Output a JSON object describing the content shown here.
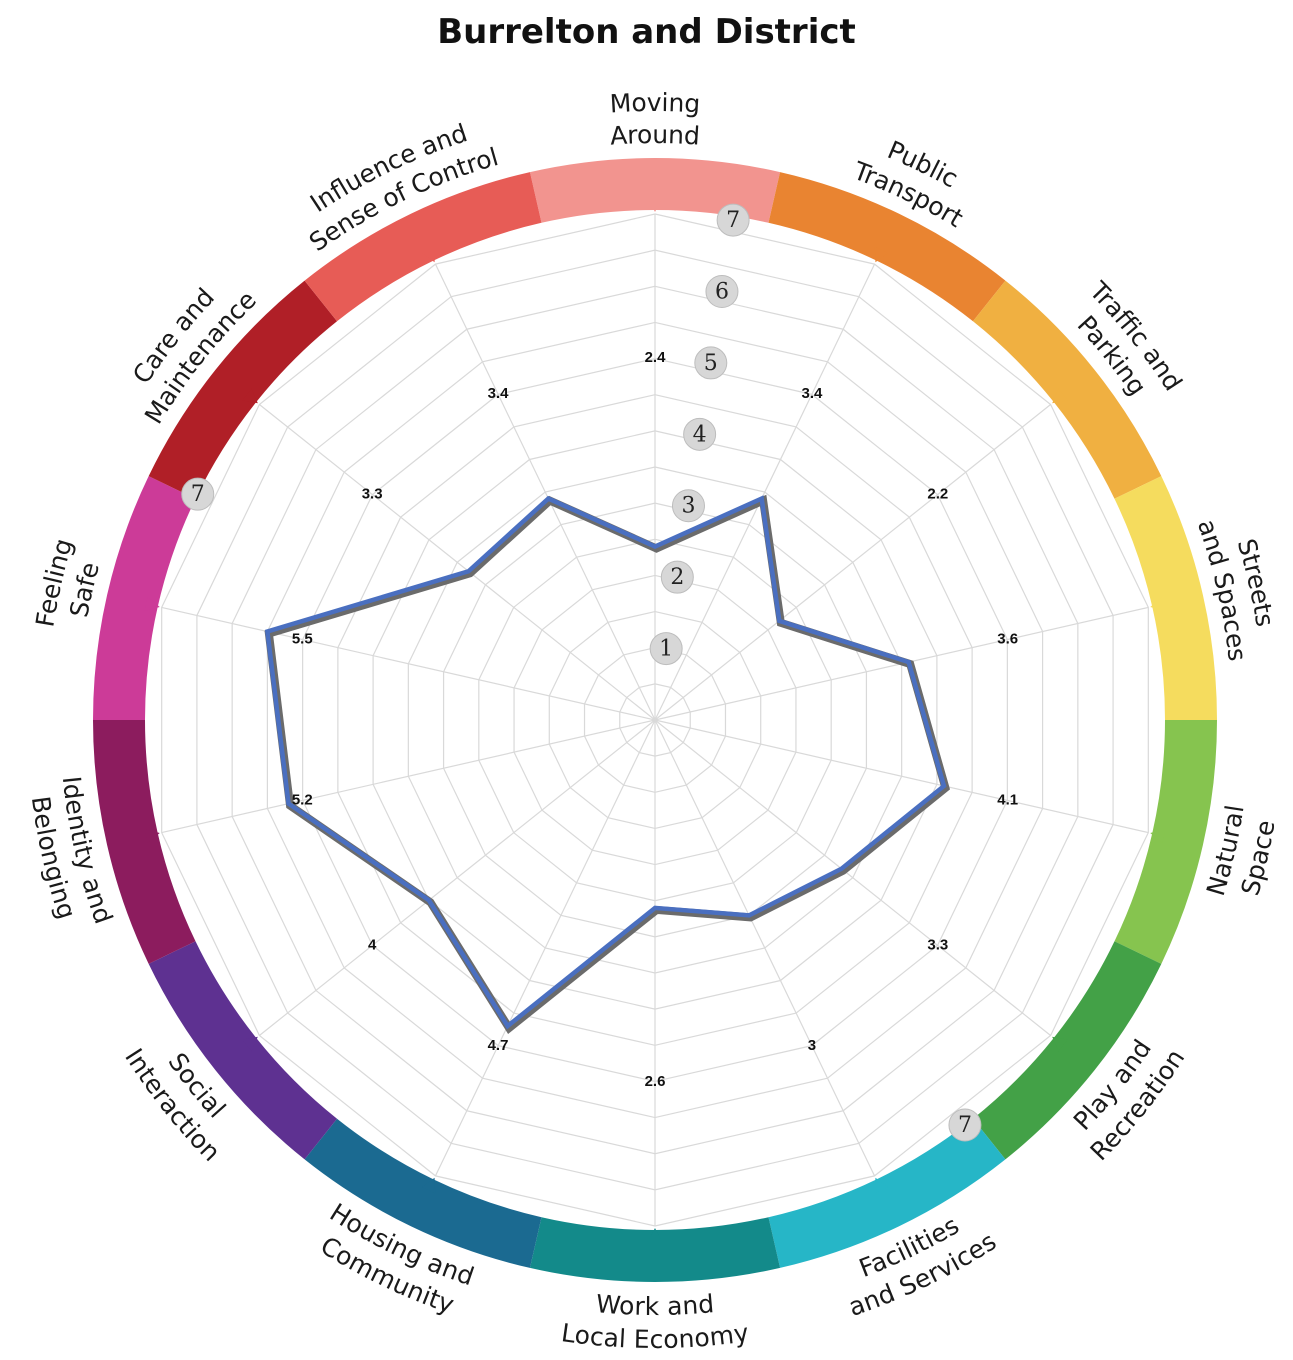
{
  "chart_data": {
    "type": "radar",
    "title": "Burrelton and District",
    "scale_max": 7,
    "scale_labels": [
      "1",
      "2",
      "3",
      "4",
      "5",
      "6",
      "7"
    ],
    "categories": [
      "Moving Around",
      "Public Transport",
      "Traffic and Parking",
      "Streets and Spaces",
      "Natural Space",
      "Play and Recreation",
      "Facilities and Services",
      "Work and Local Economy",
      "Housing and Community",
      "Social Interaction",
      "Identity and Belonging",
      "Feeling Safe",
      "Care and Maintenance",
      "Influence and Sense of Control"
    ],
    "category_label_lines": [
      [
        "Moving",
        "Around"
      ],
      [
        "Public",
        "Transport"
      ],
      [
        "Traffic and",
        "Parking"
      ],
      [
        "Streets",
        "and Spaces"
      ],
      [
        "Natural",
        "Space"
      ],
      [
        "Play and",
        "Recreation"
      ],
      [
        "Facilities",
        "and Services"
      ],
      [
        "Work and",
        "Local Economy"
      ],
      [
        "Housing and",
        "Community"
      ],
      [
        "Social",
        "Interaction"
      ],
      [
        "Identity and",
        "Belonging"
      ],
      [
        "Feeling",
        "Safe"
      ],
      [
        "Care and",
        "Maintenance"
      ],
      [
        "Influence and",
        "Sense of Control"
      ]
    ],
    "series": [
      {
        "values": [
          2.4,
          3.4,
          2.2,
          3.6,
          4.1,
          3.3,
          3.0,
          2.6,
          4.7,
          4.0,
          5.2,
          5.5,
          3.3,
          3.4
        ],
        "value_labels": [
          "2.4",
          "3.4",
          "2.2",
          "3.6",
          "4.1",
          "3.3",
          "3",
          "2.6",
          "4.7",
          "4",
          "5.2",
          "5.5",
          "3.3",
          "3.4"
        ],
        "color": "#4a6fc0"
      }
    ],
    "segment_colors": [
      "#f2948f",
      "#e98431",
      "#f0b041",
      "#f5dc5e",
      "#86c44f",
      "#43a147",
      "#26b6c7",
      "#138a8a",
      "#1b6a91",
      "#5e3191",
      "#8c1c5e",
      "#cc3b98",
      "#b01f27",
      "#e75c56"
    ]
  }
}
